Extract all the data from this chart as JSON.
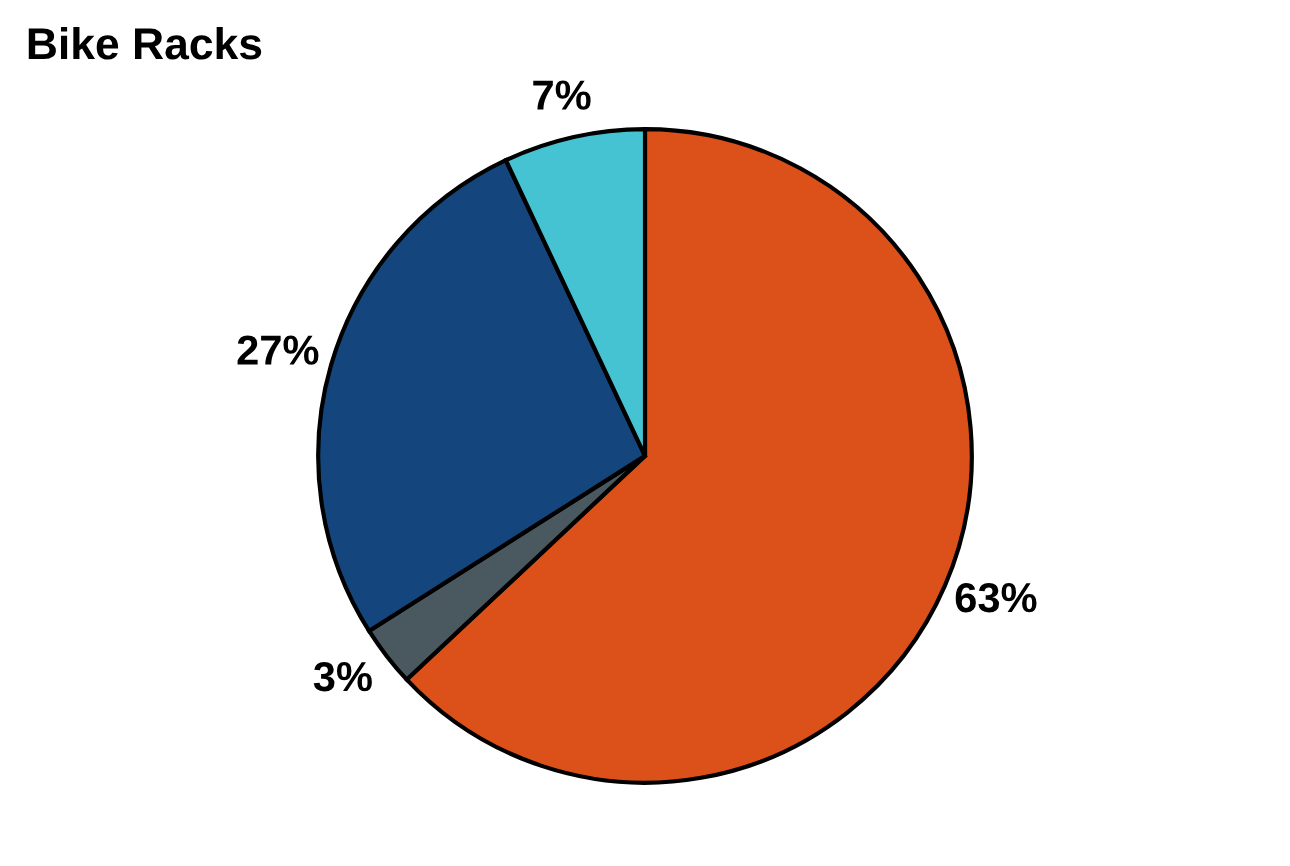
{
  "chart_data": {
    "type": "pie",
    "title": "Bike Racks",
    "categories": [
      null,
      null,
      null,
      null
    ],
    "values": [
      63,
      3,
      27,
      7
    ],
    "colors": [
      "#dc5019",
      "#4a5860",
      "#14467d",
      "#46c3d2"
    ],
    "value_labels": [
      "63%",
      "3%",
      "27%",
      "7%"
    ],
    "legend": false
  }
}
